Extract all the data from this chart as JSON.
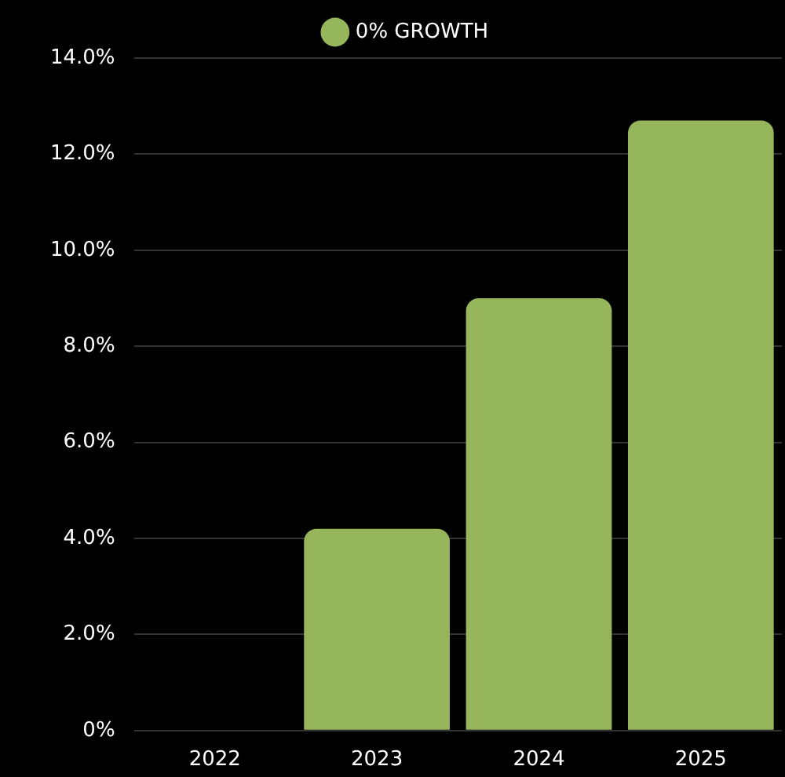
{
  "chart_data": {
    "type": "bar",
    "categories": [
      "2022",
      "2023",
      "2024",
      "2025"
    ],
    "series": [
      {
        "name": "0% GROWTH",
        "color": "#95b65a",
        "values": [
          0,
          4.2,
          9.0,
          12.7
        ]
      }
    ],
    "ylim": [
      0,
      14
    ],
    "yticks": [
      {
        "value": 0,
        "label": "0%"
      },
      {
        "value": 2,
        "label": "2.0%"
      },
      {
        "value": 4,
        "label": "4.0%"
      },
      {
        "value": 6,
        "label": "6.0%"
      },
      {
        "value": 8,
        "label": "8.0%"
      },
      {
        "value": 10,
        "label": "10.0%"
      },
      {
        "value": 12,
        "label": "12.0%"
      },
      {
        "value": 14,
        "label": "14.0%"
      }
    ],
    "grid": "y",
    "legend": "top"
  }
}
